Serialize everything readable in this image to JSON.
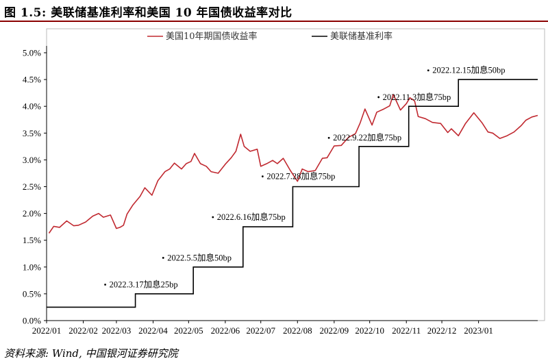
{
  "title": "图 1.5: 美联储基准利率和美国 10 年国债收益率对比",
  "source": "资料来源: Wind, 中国银河证券研究院",
  "colors": {
    "yield": "#c0282f",
    "fed": "#000000",
    "title_rule": "#8b0000"
  },
  "chart_data": {
    "type": "line",
    "title": "",
    "xlabel": "",
    "ylabel": "",
    "ylim": [
      0,
      5
    ],
    "xlim": [
      "2022-01-01",
      "2023-02-20"
    ],
    "y_ticks": [
      "0.0%",
      "0.5%",
      "1.0%",
      "1.5%",
      "2.0%",
      "2.5%",
      "3.0%",
      "3.5%",
      "4.0%",
      "4.5%",
      "5.0%"
    ],
    "x_ticks": [
      "2022/01",
      "2022/02",
      "2022/03",
      "2022/04",
      "2022/05",
      "2022/06",
      "2022/07",
      "2022/08",
      "2022/09",
      "2022/10",
      "2022/11",
      "2022/12",
      "2023/01"
    ],
    "x_tick_dates": [
      "2022-01-01",
      "2022-02-01",
      "2022-03-01",
      "2022-04-01",
      "2022-05-01",
      "2022-06-01",
      "2022-07-01",
      "2022-08-01",
      "2022-09-01",
      "2022-10-01",
      "2022-11-01",
      "2022-12-01",
      "2023-01-01"
    ],
    "grid": false,
    "legend": "top-center",
    "series": [
      {
        "name": "美国10年期国债收益率",
        "type": "line",
        "x": [
          "2022-01-03",
          "2022-01-07",
          "2022-01-12",
          "2022-01-18",
          "2022-01-24",
          "2022-01-28",
          "2022-02-03",
          "2022-02-09",
          "2022-02-14",
          "2022-02-18",
          "2022-02-24",
          "2022-03-01",
          "2022-03-04",
          "2022-03-07",
          "2022-03-10",
          "2022-03-15",
          "2022-03-21",
          "2022-03-25",
          "2022-03-31",
          "2022-04-05",
          "2022-04-11",
          "2022-04-15",
          "2022-04-19",
          "2022-04-25",
          "2022-04-29",
          "2022-05-03",
          "2022-05-06",
          "2022-05-11",
          "2022-05-16",
          "2022-05-20",
          "2022-05-26",
          "2022-06-01",
          "2022-06-06",
          "2022-06-10",
          "2022-06-14",
          "2022-06-17",
          "2022-06-22",
          "2022-06-28",
          "2022-07-01",
          "2022-07-06",
          "2022-07-11",
          "2022-07-15",
          "2022-07-20",
          "2022-07-26",
          "2022-08-01",
          "2022-08-05",
          "2022-08-10",
          "2022-08-16",
          "2022-08-22",
          "2022-08-26",
          "2022-09-01",
          "2022-09-07",
          "2022-09-13",
          "2022-09-19",
          "2022-09-23",
          "2022-09-27",
          "2022-10-03",
          "2022-10-07",
          "2022-10-13",
          "2022-10-18",
          "2022-10-21",
          "2022-10-27",
          "2022-11-01",
          "2022-11-04",
          "2022-11-08",
          "2022-11-11",
          "2022-11-17",
          "2022-11-23",
          "2022-11-30",
          "2022-12-06",
          "2022-12-09",
          "2022-12-15",
          "2022-12-21",
          "2022-12-28",
          "2023-01-04",
          "2023-01-09",
          "2023-01-13",
          "2023-01-19",
          "2023-01-25",
          "2023-01-31",
          "2023-02-06",
          "2023-02-10",
          "2023-02-15",
          "2023-02-20"
        ],
        "values": [
          1.63,
          1.76,
          1.74,
          1.86,
          1.77,
          1.78,
          1.84,
          1.95,
          2.0,
          1.93,
          1.97,
          1.72,
          1.74,
          1.78,
          1.99,
          2.16,
          2.32,
          2.48,
          2.34,
          2.61,
          2.78,
          2.83,
          2.94,
          2.83,
          2.93,
          2.97,
          3.12,
          2.93,
          2.88,
          2.78,
          2.75,
          2.92,
          3.04,
          3.16,
          3.48,
          3.25,
          3.16,
          3.2,
          2.88,
          2.93,
          2.99,
          2.93,
          3.03,
          2.8,
          2.6,
          2.83,
          2.78,
          2.8,
          3.03,
          3.04,
          3.26,
          3.27,
          3.42,
          3.49,
          3.69,
          3.95,
          3.65,
          3.89,
          3.95,
          4.01,
          4.22,
          3.93,
          4.05,
          4.16,
          4.1,
          3.81,
          3.77,
          3.7,
          3.68,
          3.51,
          3.58,
          3.45,
          3.68,
          3.88,
          3.69,
          3.52,
          3.5,
          3.4,
          3.45,
          3.52,
          3.64,
          3.74,
          3.8,
          3.83
        ]
      },
      {
        "name": "美联储基准利率",
        "type": "step",
        "x": [
          "2022-01-01",
          "2022-03-17",
          "2022-05-05",
          "2022-06-16",
          "2022-07-28",
          "2022-09-22",
          "2022-11-03",
          "2022-12-15",
          "2023-02-20"
        ],
        "values": [
          0.25,
          0.5,
          1.0,
          1.75,
          2.5,
          3.25,
          4.0,
          4.5,
          4.5
        ]
      }
    ],
    "annotations": [
      {
        "text": "2022.3.17加息25bp",
        "x": "2022-03-17",
        "y": 0.62
      },
      {
        "text": "2022.5.5加息50bp",
        "x": "2022-05-05",
        "y": 1.12
      },
      {
        "text": "2022.6.16加息75bp",
        "x": "2022-06-16",
        "y": 1.88
      },
      {
        "text": "2022.7.28加息75bp",
        "x": "2022-07-28",
        "y": 2.64
      },
      {
        "text": "2022.9.22加息75bp",
        "x": "2022-09-22",
        "y": 3.36
      },
      {
        "text": "2022.11.3加息75bp",
        "x": "2022-11-03",
        "y": 4.12
      },
      {
        "text": "2022.12.15加息50bp",
        "x": "2022-12-15",
        "y": 4.62
      }
    ]
  }
}
